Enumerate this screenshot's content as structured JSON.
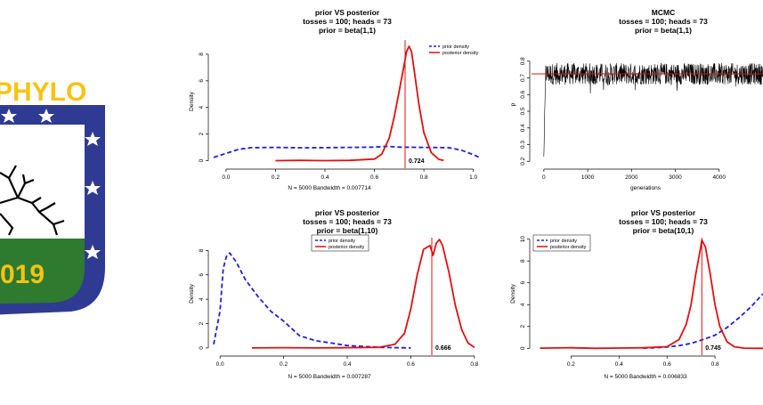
{
  "logo": {
    "text_top": "PHYLO",
    "year": "019"
  },
  "colors": {
    "prior": "#1f1fdf",
    "posterior": "#e01010",
    "mcmc": "#000000",
    "logo_blue": "#2f3b93",
    "logo_yellow": "#f7c313",
    "logo_green": "#2e7a2e"
  },
  "chart_data": [
    {
      "id": "p1",
      "type": "line",
      "title": "prior VS posterior",
      "subtitle1": "tosses = 100; heads = 73",
      "subtitle2": "prior = beta(1,1)",
      "xlabel": "N = 5000   Bandwidth = 0.007714",
      "ylabel": "Density",
      "xlim": [
        -0.05,
        1.03
      ],
      "ylim": [
        -0.3,
        9.2
      ],
      "xticks": [
        0.0,
        0.2,
        0.4,
        0.6,
        0.8,
        1.0
      ],
      "xtick_labels": [
        "0.0",
        "0.2",
        "0.4",
        "0.6",
        "0.8",
        "1.0"
      ],
      "yticks": [
        0,
        2,
        4,
        6,
        8
      ],
      "ytick_labels": [
        "0",
        "2",
        "4",
        "6",
        "8"
      ],
      "legend": {
        "position": "top-right",
        "entries": [
          "prior density",
          "posterior density"
        ]
      },
      "series": [
        {
          "name": "prior density",
          "style": "dashed",
          "color": "#1f1fdf",
          "x": [
            -0.05,
            0.0,
            0.05,
            0.1,
            0.2,
            0.3,
            0.4,
            0.5,
            0.6,
            0.65,
            0.7,
            0.8,
            0.9,
            0.95,
            1.0,
            1.03
          ],
          "y": [
            0.25,
            0.55,
            0.85,
            0.98,
            1.0,
            0.97,
            0.98,
            1.0,
            1.02,
            1.08,
            1.02,
            1.0,
            0.98,
            0.8,
            0.45,
            0.2
          ]
        },
        {
          "name": "posterior density",
          "style": "solid",
          "color": "#e01010",
          "x": [
            0.2,
            0.3,
            0.4,
            0.5,
            0.6,
            0.63,
            0.66,
            0.68,
            0.7,
            0.72,
            0.73,
            0.74,
            0.75,
            0.76,
            0.78,
            0.8,
            0.83,
            0.86,
            0.88
          ],
          "y": [
            0.0,
            0.02,
            0.0,
            0.02,
            0.12,
            0.5,
            1.7,
            3.3,
            5.2,
            7.2,
            8.2,
            8.6,
            8.2,
            6.9,
            4.2,
            2.1,
            0.6,
            0.1,
            0.02
          ]
        }
      ],
      "vline": {
        "x": 0.724,
        "label": "0.724"
      }
    },
    {
      "id": "p2",
      "type": "line",
      "title": "MCMC",
      "subtitle1": "tosses = 100; heads = 73",
      "subtitle2": "prior = beta(1,1)",
      "xlabel": "generations",
      "ylabel": "p",
      "xlim": [
        -200,
        5000
      ],
      "ylim": [
        0.18,
        0.9
      ],
      "xticks": [
        0,
        1000,
        2000,
        3000,
        4000
      ],
      "xtick_labels": [
        "0",
        "1000",
        "2000",
        "3000",
        "4000"
      ],
      "yticks": [
        0.2,
        0.3,
        0.4,
        0.5,
        0.6,
        0.7,
        0.8
      ],
      "ytick_labels": [
        "0.2",
        "0.3",
        "0.4",
        "0.5",
        "0.6",
        "0.7",
        "0.8"
      ],
      "trace": {
        "start": 0.22,
        "center": 0.724,
        "n": 5000,
        "color": "#000000"
      },
      "hline": {
        "y": 0.724,
        "color": "#e01010"
      }
    },
    {
      "id": "p3",
      "type": "line",
      "title": "prior VS posterior",
      "subtitle1": "tosses = 100; heads = 73",
      "subtitle2": "prior = beta(1,10)",
      "xlabel": "N = 5000   Bandwidth = 0.007287",
      "ylabel": "Density",
      "xlim": [
        -0.02,
        0.82
      ],
      "ylim": [
        -0.3,
        9.2
      ],
      "xticks": [
        0.0,
        0.2,
        0.4,
        0.6,
        0.8
      ],
      "xtick_labels": [
        "0.0",
        "0.2",
        "0.4",
        "0.6",
        "0.8"
      ],
      "yticks": [
        0,
        2,
        4,
        6,
        8
      ],
      "ytick_labels": [
        "0",
        "2",
        "4",
        "6",
        "8"
      ],
      "legend": {
        "position": "top-center",
        "entries": [
          "prior density",
          "posterior density"
        ]
      },
      "series": [
        {
          "name": "prior density",
          "style": "dashed",
          "color": "#1f1fdf",
          "x": [
            -0.02,
            0.0,
            0.01,
            0.02,
            0.03,
            0.05,
            0.08,
            0.12,
            0.16,
            0.2,
            0.25,
            0.3,
            0.35,
            0.4,
            0.5,
            0.6
          ],
          "y": [
            0.3,
            3.0,
            6.5,
            7.5,
            7.8,
            7.1,
            5.6,
            4.2,
            3.0,
            2.2,
            1.0,
            0.6,
            0.4,
            0.2,
            0.05,
            0.0
          ]
        },
        {
          "name": "posterior density",
          "style": "solid",
          "color": "#e01010",
          "x": [
            0.1,
            0.2,
            0.3,
            0.4,
            0.5,
            0.55,
            0.58,
            0.6,
            0.62,
            0.64,
            0.66,
            0.67,
            0.68,
            0.69,
            0.7,
            0.72,
            0.74,
            0.76,
            0.78,
            0.8
          ],
          "y": [
            0.0,
            0.02,
            0.0,
            0.02,
            0.05,
            0.3,
            1.2,
            3.2,
            6.0,
            8.1,
            8.4,
            7.6,
            8.6,
            8.9,
            8.4,
            6.2,
            3.5,
            1.5,
            0.4,
            0.05
          ]
        }
      ],
      "vline": {
        "x": 0.666,
        "label": "0.666"
      }
    },
    {
      "id": "p4",
      "type": "line",
      "title": "prior VS posterior",
      "subtitle1": "tosses = 100; heads = 73",
      "subtitle2": "prior = beta(10,1)",
      "xlabel": "N = 5000   Bandwidth = 0.006833",
      "ylabel": "Density",
      "xlim": [
        0.05,
        1.0
      ],
      "ylim": [
        -0.3,
        10.3
      ],
      "xticks": [
        0.2,
        0.4,
        0.6,
        0.8
      ],
      "xtick_labels": [
        "0.2",
        "0.4",
        "0.6",
        "0.8"
      ],
      "yticks": [
        0,
        2,
        4,
        6,
        8,
        10
      ],
      "ytick_labels": [
        "0",
        "2",
        "4",
        "6",
        "8",
        "10"
      ],
      "legend": {
        "position": "top-left",
        "entries": [
          "prior density",
          "posterior density"
        ]
      },
      "series": [
        {
          "name": "prior density",
          "style": "dashed",
          "color": "#1f1fdf",
          "x": [
            0.5,
            0.55,
            0.6,
            0.65,
            0.7,
            0.75,
            0.8,
            0.85,
            0.9,
            0.95,
            1.0
          ],
          "y": [
            0.02,
            0.05,
            0.12,
            0.25,
            0.45,
            0.8,
            1.2,
            1.9,
            2.8,
            3.8,
            5.0
          ]
        },
        {
          "name": "posterior density",
          "style": "solid",
          "color": "#e01010",
          "x": [
            0.07,
            0.2,
            0.3,
            0.4,
            0.5,
            0.6,
            0.65,
            0.68,
            0.7,
            0.72,
            0.74,
            0.745,
            0.76,
            0.78,
            0.8,
            0.82,
            0.85,
            0.88,
            0.92,
            0.97,
            1.0
          ],
          "y": [
            0.02,
            0.05,
            0.0,
            0.03,
            0.05,
            0.15,
            0.8,
            2.2,
            4.0,
            6.8,
            9.2,
            9.9,
            9.3,
            6.8,
            4.0,
            2.0,
            0.6,
            0.15,
            0.02,
            0.0,
            0.0
          ]
        }
      ],
      "vline": {
        "x": 0.745,
        "label": "0.745"
      }
    }
  ]
}
